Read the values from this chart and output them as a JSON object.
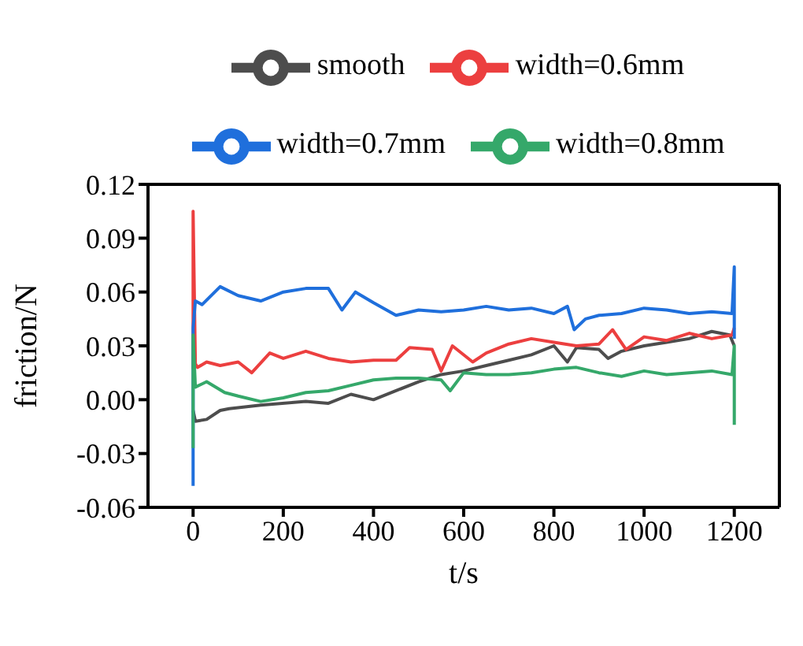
{
  "chart_data": {
    "type": "line",
    "xlabel": "t/s",
    "ylabel": "friction/N",
    "xlim": [
      -100,
      1300
    ],
    "ylim": [
      -0.06,
      0.12
    ],
    "xticks": [
      0,
      200,
      400,
      600,
      800,
      1000,
      1200
    ],
    "yticks": [
      {
        "value": -0.06,
        "label": "-0.06"
      },
      {
        "value": -0.03,
        "label": "-0.03"
      },
      {
        "value": 0,
        "label": "0.00"
      },
      {
        "value": 0.03,
        "label": "0.03"
      },
      {
        "value": 0.06,
        "label": "0.06"
      },
      {
        "value": 0.09,
        "label": "0.09"
      },
      {
        "value": 0.12,
        "label": "0.12"
      }
    ],
    "grid": false,
    "legend": "top",
    "marker": "none",
    "line_style": "solid",
    "series": [
      {
        "name": "smooth",
        "color": "#4d4d4d",
        "x": [
          0,
          5,
          30,
          60,
          80,
          150,
          250,
          300,
          350,
          400,
          450,
          500,
          550,
          600,
          650,
          700,
          750,
          800,
          830,
          850,
          900,
          920,
          950,
          1000,
          1050,
          1100,
          1150,
          1190,
          1200
        ],
        "values": [
          -0.006,
          -0.012,
          -0.011,
          -0.006,
          -0.005,
          -0.003,
          -0.001,
          -0.002,
          0.003,
          0.0,
          0.005,
          0.01,
          0.014,
          0.016,
          0.019,
          0.022,
          0.025,
          0.03,
          0.021,
          0.029,
          0.028,
          0.023,
          0.027,
          0.03,
          0.032,
          0.034,
          0.038,
          0.036,
          0.03
        ]
      },
      {
        "name": "width=0.6mm",
        "color": "#ec3f3f",
        "x": [
          0,
          0,
          5,
          10,
          30,
          60,
          100,
          130,
          170,
          200,
          250,
          300,
          350,
          400,
          450,
          480,
          530,
          550,
          575,
          620,
          650,
          700,
          750,
          800,
          850,
          900,
          930,
          960,
          1000,
          1050,
          1100,
          1150,
          1195,
          1200
        ],
        "values": [
          0.017,
          0.105,
          0.02,
          0.018,
          0.021,
          0.019,
          0.021,
          0.015,
          0.026,
          0.023,
          0.027,
          0.023,
          0.021,
          0.022,
          0.022,
          0.029,
          0.028,
          0.016,
          0.03,
          0.021,
          0.026,
          0.031,
          0.034,
          0.032,
          0.03,
          0.031,
          0.039,
          0.028,
          0.035,
          0.033,
          0.037,
          0.034,
          0.036,
          0.04
        ]
      },
      {
        "name": "width=0.7mm",
        "color": "#1f6fdc",
        "x": [
          0,
          0,
          5,
          20,
          60,
          100,
          150,
          200,
          250,
          300,
          330,
          360,
          400,
          450,
          500,
          550,
          600,
          650,
          700,
          750,
          800,
          830,
          845,
          870,
          900,
          950,
          1000,
          1050,
          1100,
          1150,
          1195,
          1200,
          1200
        ],
        "values": [
          -0.048,
          0.04,
          0.055,
          0.053,
          0.063,
          0.058,
          0.055,
          0.06,
          0.062,
          0.062,
          0.05,
          0.06,
          0.054,
          0.047,
          0.05,
          0.049,
          0.05,
          0.052,
          0.05,
          0.051,
          0.048,
          0.052,
          0.039,
          0.045,
          0.047,
          0.048,
          0.051,
          0.05,
          0.048,
          0.049,
          0.048,
          0.074,
          0.034
        ]
      },
      {
        "name": "width=0.8mm",
        "color": "#35a86a",
        "x": [
          0,
          0,
          5,
          30,
          70,
          100,
          150,
          200,
          250,
          300,
          350,
          400,
          450,
          500,
          550,
          570,
          600,
          650,
          700,
          750,
          800,
          850,
          900,
          950,
          1000,
          1050,
          1100,
          1150,
          1195,
          1200,
          1200
        ],
        "values": [
          -0.027,
          0.036,
          0.007,
          0.01,
          0.004,
          0.002,
          -0.001,
          0.001,
          0.004,
          0.005,
          0.008,
          0.011,
          0.012,
          0.012,
          0.011,
          0.005,
          0.015,
          0.014,
          0.014,
          0.015,
          0.017,
          0.018,
          0.015,
          0.013,
          0.016,
          0.014,
          0.015,
          0.016,
          0.014,
          0.03,
          -0.014
        ]
      }
    ]
  }
}
